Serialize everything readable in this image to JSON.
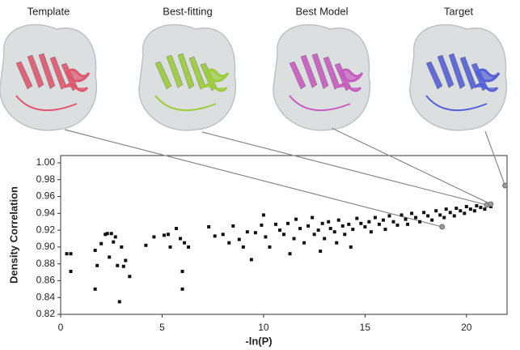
{
  "chart_data": {
    "type": "scatter",
    "x_label": "-ln(P)",
    "y_label": "Density Correlation",
    "xlim": [
      0,
      22
    ],
    "ylim": [
      0.82,
      1.0
    ],
    "xticks": [
      0,
      5,
      10,
      15,
      20
    ],
    "yticks": [
      {
        "value": 0.82,
        "label": "0.82"
      },
      {
        "value": 0.84,
        "label": "0.84"
      },
      {
        "value": 0.86,
        "label": "0.86"
      },
      {
        "value": 0.88,
        "label": "0.88"
      },
      {
        "value": 0.9,
        "label": "0.90"
      },
      {
        "value": 0.92,
        "label": "0.92"
      },
      {
        "value": 0.94,
        "label": "0.94"
      },
      {
        "value": 0.96,
        "label": "0.96"
      },
      {
        "value": 0.98,
        "label": "0.98"
      },
      {
        "value": 1.0,
        "label": "1.00"
      }
    ],
    "grid": false,
    "panels": [
      {
        "label": "Template",
        "color": "#e0566e",
        "x": 18.8,
        "y": 0.924
      },
      {
        "label": "Best-fitting",
        "color": "#9ccc3a",
        "x": 21.0,
        "y": 0.95
      },
      {
        "label": "Best Model",
        "color": "#c85bc0",
        "x": 21.2,
        "y": 0.951
      },
      {
        "label": "Target",
        "color": "#5560d6",
        "x": 21.9,
        "y": 0.973
      }
    ],
    "series": [
      {
        "color": "#111111",
        "x": [
          0.3,
          0.5,
          0.5,
          1.7,
          1.7,
          1.8,
          2.0,
          2.2,
          2.3,
          2.4,
          2.5,
          2.6,
          2.7,
          2.8,
          2.9,
          3.0,
          3.1,
          3.2,
          3.4,
          4.2,
          4.6,
          5.1,
          5.3,
          5.4,
          5.7,
          5.9,
          6.0,
          6.0,
          6.1,
          6.3,
          7.3,
          7.6,
          8.0,
          8.3,
          8.5,
          8.8,
          9.0,
          9.2,
          9.4,
          9.6,
          9.9,
          10.0,
          10.1,
          10.3,
          10.6,
          10.8,
          11.0,
          11.2,
          11.5,
          11.6,
          11.8,
          12.0,
          12.2,
          12.4,
          12.5,
          12.7,
          12.9,
          13.0,
          13.2,
          13.3,
          13.5,
          13.7,
          13.9,
          14.0,
          14.2,
          14.4,
          14.6,
          14.8,
          15.0,
          15.2,
          15.3,
          15.5,
          15.7,
          15.9,
          16.0,
          16.2,
          16.4,
          16.6,
          16.8,
          17.0,
          17.1,
          17.3,
          17.5,
          17.7,
          17.9,
          18.1,
          18.3,
          18.5,
          18.7,
          18.9,
          19.0,
          19.2,
          19.4,
          19.5,
          19.7,
          19.9,
          20.0,
          20.2,
          20.4,
          20.5,
          20.7,
          20.9,
          21.0,
          21.2,
          12.8,
          11.3,
          13.6,
          14.3
        ],
        "values": [
          0.892,
          0.892,
          0.871,
          0.85,
          0.896,
          0.878,
          0.904,
          0.915,
          0.916,
          0.888,
          0.916,
          0.906,
          0.912,
          0.878,
          0.835,
          0.9,
          0.877,
          0.884,
          0.865,
          0.902,
          0.912,
          0.914,
          0.915,
          0.9,
          0.922,
          0.91,
          0.871,
          0.85,
          0.905,
          0.9,
          0.924,
          0.913,
          0.915,
          0.905,
          0.925,
          0.909,
          0.9,
          0.918,
          0.885,
          0.917,
          0.926,
          0.938,
          0.912,
          0.9,
          0.927,
          0.92,
          0.915,
          0.928,
          0.91,
          0.933,
          0.922,
          0.905,
          0.925,
          0.935,
          0.915,
          0.92,
          0.928,
          0.91,
          0.93,
          0.922,
          0.918,
          0.932,
          0.925,
          0.915,
          0.927,
          0.921,
          0.934,
          0.928,
          0.924,
          0.93,
          0.918,
          0.935,
          0.927,
          0.932,
          0.921,
          0.937,
          0.93,
          0.926,
          0.938,
          0.933,
          0.927,
          0.94,
          0.935,
          0.93,
          0.941,
          0.937,
          0.932,
          0.943,
          0.938,
          0.935,
          0.945,
          0.941,
          0.937,
          0.946,
          0.943,
          0.94,
          0.948,
          0.945,
          0.943,
          0.949,
          0.947,
          0.945,
          0.95,
          0.948,
          0.895,
          0.892,
          0.905,
          0.9
        ]
      }
    ]
  }
}
